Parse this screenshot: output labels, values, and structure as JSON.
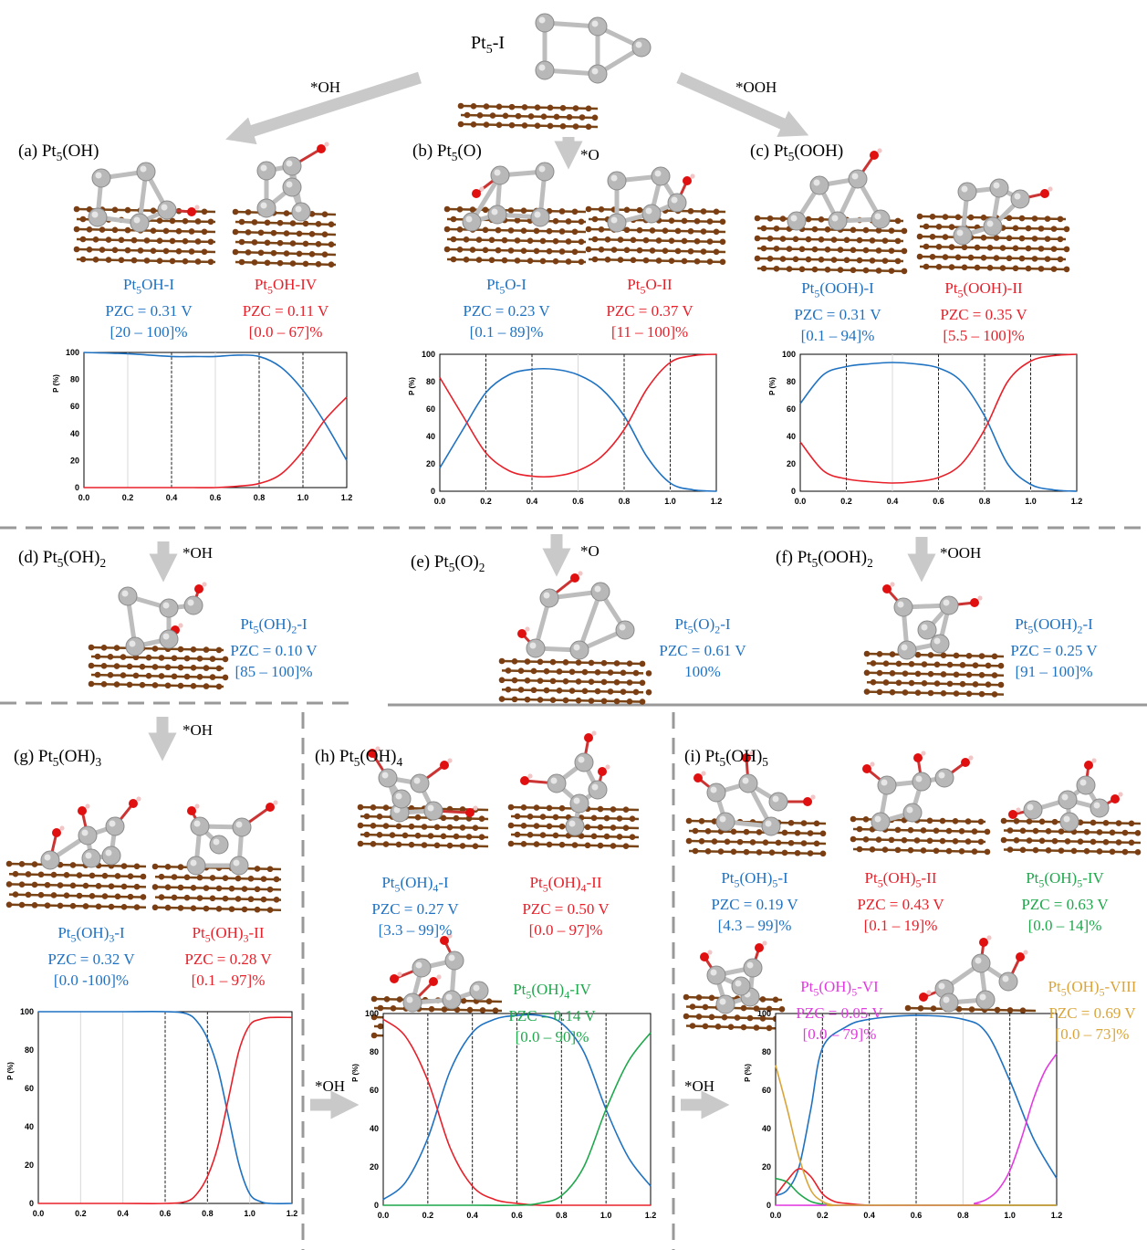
{
  "top": {
    "label": "Pt5-I",
    "arrow_left": "*OH",
    "arrow_right": "*OOH"
  },
  "panels": {
    "a": {
      "title": "(a) Pt5(OH)",
      "structures": [
        {
          "name": "Pt5OH-I",
          "pzc": "PZC = 0.31 V",
          "range": "[20 – 100]%",
          "color": "#1f72c2"
        },
        {
          "name": "Pt5OH-IV",
          "pzc": "PZC = 0.11 V",
          "range": "[0.0 – 67]%",
          "color": "#e8202a"
        }
      ]
    },
    "b": {
      "title": "(b) Pt5(O)",
      "arrow": "*O",
      "structures": [
        {
          "name": "Pt5O-I",
          "pzc": "PZC = 0.23 V",
          "range": "[0.1 – 89]%",
          "color": "#1f72c2"
        },
        {
          "name": "Pt5O-II",
          "pzc": "PZC = 0.37 V",
          "range": "[11 – 100]%",
          "color": "#e8202a"
        }
      ]
    },
    "c": {
      "title": "(c) Pt5(OOH)",
      "structures": [
        {
          "name": "Pt5(OOH)-I",
          "pzc": "PZC = 0.31 V",
          "range": "[0.1 – 94]%",
          "color": "#1f72c2"
        },
        {
          "name": "Pt5(OOH)-II",
          "pzc": "PZC = 0.35 V",
          "range": "[5.5 – 100]%",
          "color": "#e8202a"
        }
      ]
    },
    "d": {
      "title": "(d) Pt5(OH)2",
      "arrow": "*OH",
      "structures": [
        {
          "name": "Pt5(OH)2-I",
          "pzc": "PZC = 0.10 V",
          "range": "[85 – 100]%",
          "color": "#1f72c2"
        }
      ]
    },
    "e": {
      "title": "(e) Pt5(O)2",
      "arrow": "*O",
      "structures": [
        {
          "name": "Pt5(O)2-I",
          "pzc": "PZC = 0.61 V",
          "range": "100%",
          "color": "#1f72c2"
        }
      ]
    },
    "f": {
      "title": "(f) Pt5(OOH)2",
      "arrow": "*OOH",
      "structures": [
        {
          "name": "Pt5(OOH)2-I",
          "pzc": "PZC = 0.25 V",
          "range": "[91 – 100]%",
          "color": "#1f72c2"
        }
      ]
    },
    "g": {
      "title": "(g) Pt5(OH)3",
      "arrow": "*OH",
      "structures": [
        {
          "name": "Pt5(OH)3-I",
          "pzc": "PZC = 0.32 V",
          "range": "[0.0 -100]%",
          "color": "#1f72c2"
        },
        {
          "name": "Pt5(OH)3-II",
          "pzc": "PZC = 0.28 V",
          "range": "[0.1 – 97]%",
          "color": "#e8202a"
        }
      ]
    },
    "h": {
      "title": "(h) Pt5(OH)4",
      "arrow": "*OH",
      "structures": [
        {
          "name": "Pt5(OH)4-I",
          "pzc": "PZC = 0.27 V",
          "range": "[3.3 – 99]%",
          "color": "#1f72c2"
        },
        {
          "name": "Pt5(OH)4-II",
          "pzc": "PZC = 0.50 V",
          "range": "[0.0 – 97]%",
          "color": "#e8202a"
        },
        {
          "name": "Pt5(OH)4-IV",
          "pzc": "PZC = 0.14 V",
          "range": "[0.0 – 90]%",
          "color": "#1fa74c"
        }
      ]
    },
    "i": {
      "title": "(i) Pt5(OH)5",
      "arrow": "*OH",
      "structures": [
        {
          "name": "Pt5(OH)5-I",
          "pzc": "PZC = 0.19 V",
          "range": "[4.3 – 99]%",
          "color": "#1f72c2"
        },
        {
          "name": "Pt5(OH)5-II",
          "pzc": "PZC = 0.43 V",
          "range": "[0.1 – 19]%",
          "color": "#e8202a"
        },
        {
          "name": "Pt5(OH)5-IV",
          "pzc": "PZC = 0.63 V",
          "range": "[0.0 – 14]%",
          "color": "#1fa74c"
        },
        {
          "name": "Pt5(OH)5-VI",
          "pzc": "PZC = 0.05 V",
          "range": "[0.0 – 79]%",
          "color": "#e23be0"
        },
        {
          "name": "Pt5(OH)5-VIII",
          "pzc": "PZC = 0.69 V",
          "range": "[0.0 – 73]%",
          "color": "#d9a53b"
        }
      ]
    }
  },
  "chart_data": [
    {
      "id": "a",
      "type": "line",
      "ylabel": "P (%)",
      "xlim": [
        0,
        1.2
      ],
      "ylim": [
        0,
        100
      ],
      "xticks": [
        "0.0",
        "0.2",
        "0.4",
        "0.6",
        "0.8",
        "1.0",
        "1.2"
      ],
      "yticks": [
        "0",
        "20",
        "40",
        "60",
        "80",
        "100"
      ],
      "vlines_dashed": [
        0.4,
        0.8,
        1.0
      ],
      "series": [
        {
          "color": "#1f72c2",
          "x": [
            0,
            0.2,
            0.4,
            0.5,
            0.6,
            0.7,
            0.8,
            0.9,
            1.0,
            1.1,
            1.2
          ],
          "y": [
            100,
            99,
            97,
            97,
            97,
            98,
            97,
            89,
            72,
            48,
            20
          ]
        },
        {
          "color": "#e8202a",
          "x": [
            0,
            0.2,
            0.4,
            0.5,
            0.6,
            0.7,
            0.8,
            0.9,
            1.0,
            1.1,
            1.2
          ],
          "y": [
            0,
            0,
            0,
            0,
            0,
            1,
            3,
            10,
            27,
            50,
            67
          ]
        }
      ]
    },
    {
      "id": "b",
      "type": "line",
      "ylabel": "P (%)",
      "xlim": [
        0,
        1.2
      ],
      "ylim": [
        0,
        100
      ],
      "xticks": [
        "0.0",
        "0.2",
        "0.4",
        "0.6",
        "0.8",
        "1.0",
        "1.2"
      ],
      "yticks": [
        "0",
        "20",
        "40",
        "60",
        "80",
        "100"
      ],
      "vlines_dashed": [
        0.2,
        0.4,
        0.8,
        1.0
      ],
      "series": [
        {
          "color": "#1f72c2",
          "x": [
            0,
            0.1,
            0.2,
            0.3,
            0.4,
            0.5,
            0.6,
            0.7,
            0.8,
            0.9,
            1.0,
            1.1,
            1.2
          ],
          "y": [
            17,
            45,
            72,
            85,
            89,
            89,
            85,
            75,
            55,
            25,
            6,
            1,
            0
          ]
        },
        {
          "color": "#e8202a",
          "x": [
            0,
            0.1,
            0.2,
            0.3,
            0.4,
            0.5,
            0.6,
            0.7,
            0.8,
            0.9,
            1.0,
            1.1,
            1.2
          ],
          "y": [
            83,
            55,
            28,
            15,
            11,
            11,
            15,
            25,
            45,
            75,
            94,
            99,
            100
          ]
        }
      ]
    },
    {
      "id": "c",
      "type": "line",
      "ylabel": "P (%)",
      "xlim": [
        0,
        1.2
      ],
      "ylim": [
        0,
        100
      ],
      "xticks": [
        "0.0",
        "0.2",
        "0.4",
        "0.6",
        "0.8",
        "1.0",
        "1.2"
      ],
      "yticks": [
        "0",
        "20",
        "40",
        "60",
        "80",
        "100"
      ],
      "vlines_dashed": [
        0.2,
        0.6,
        0.8,
        1.0
      ],
      "series": [
        {
          "color": "#1f72c2",
          "x": [
            0,
            0.1,
            0.2,
            0.3,
            0.4,
            0.5,
            0.6,
            0.7,
            0.8,
            0.9,
            1.0,
            1.1,
            1.2
          ],
          "y": [
            64,
            85,
            91,
            93,
            94,
            93,
            90,
            80,
            55,
            20,
            5,
            1,
            0
          ]
        },
        {
          "color": "#e8202a",
          "x": [
            0,
            0.1,
            0.2,
            0.3,
            0.4,
            0.5,
            0.6,
            0.7,
            0.8,
            0.9,
            1.0,
            1.1,
            1.2
          ],
          "y": [
            36,
            15,
            9,
            7,
            6,
            7,
            10,
            20,
            45,
            80,
            95,
            99,
            100
          ]
        }
      ]
    },
    {
      "id": "g",
      "type": "line",
      "ylabel": "P (%)",
      "xlim": [
        0,
        1.2
      ],
      "ylim": [
        0,
        100
      ],
      "xticks": [
        "0.0",
        "0.2",
        "0.4",
        "0.6",
        "0.8",
        "1.0",
        "1.2"
      ],
      "yticks": [
        "0",
        "20",
        "40",
        "60",
        "80",
        "100"
      ],
      "vlines_dashed": [
        0.6,
        0.8
      ],
      "series": [
        {
          "color": "#1f72c2",
          "x": [
            0,
            0.2,
            0.4,
            0.6,
            0.7,
            0.75,
            0.8,
            0.85,
            0.9,
            0.95,
            1.0,
            1.05,
            1.1,
            1.2
          ],
          "y": [
            100,
            100,
            100,
            100,
            99,
            95,
            86,
            70,
            45,
            20,
            5,
            1,
            0,
            0
          ]
        },
        {
          "color": "#e8202a",
          "x": [
            0,
            0.2,
            0.4,
            0.6,
            0.7,
            0.75,
            0.8,
            0.85,
            0.9,
            0.95,
            1.0,
            1.05,
            1.1,
            1.2
          ],
          "y": [
            0,
            0,
            0,
            0,
            1,
            5,
            14,
            30,
            55,
            80,
            93,
            96,
            97,
            97
          ]
        }
      ]
    },
    {
      "id": "h",
      "type": "line",
      "ylabel": "P (%)",
      "xlim": [
        0,
        1.2
      ],
      "ylim": [
        0,
        100
      ],
      "xticks": [
        "0.0",
        "0.2",
        "0.4",
        "0.6",
        "0.8",
        "1.0",
        "1.2"
      ],
      "yticks": [
        "0",
        "20",
        "40",
        "60",
        "80",
        "100"
      ],
      "vlines_dashed": [
        0.2,
        0.4,
        0.6,
        0.8,
        1.0
      ],
      "series": [
        {
          "color": "#1f72c2",
          "x": [
            0,
            0.1,
            0.2,
            0.3,
            0.4,
            0.5,
            0.6,
            0.7,
            0.8,
            0.9,
            1.0,
            1.1,
            1.2
          ],
          "y": [
            3,
            12,
            35,
            70,
            90,
            97,
            99,
            99,
            95,
            80,
            50,
            25,
            10
          ]
        },
        {
          "color": "#e8202a",
          "x": [
            0,
            0.1,
            0.2,
            0.3,
            0.4,
            0.5,
            0.6,
            0.7,
            0.8,
            0.9,
            1.0,
            1.1,
            1.2
          ],
          "y": [
            97,
            88,
            65,
            30,
            10,
            3,
            1,
            0,
            0,
            0,
            0,
            0,
            0
          ]
        },
        {
          "color": "#1fa74c",
          "x": [
            0,
            0.2,
            0.4,
            0.6,
            0.7,
            0.8,
            0.9,
            1.0,
            1.1,
            1.2
          ],
          "y": [
            0,
            0,
            0,
            0,
            1,
            5,
            20,
            50,
            75,
            90
          ]
        }
      ]
    },
    {
      "id": "i",
      "type": "line",
      "ylabel": "P (%)",
      "xlim": [
        0,
        1.2
      ],
      "ylim": [
        0,
        100
      ],
      "xticks": [
        "0.0",
        "0.2",
        "0.4",
        "0.6",
        "0.8",
        "1.0",
        "1.2"
      ],
      "yticks": [
        "0",
        "20",
        "40",
        "60",
        "80",
        "100"
      ],
      "vlines_dashed": [
        0.2,
        0.4,
        0.6,
        1.0
      ],
      "series": [
        {
          "color": "#1f72c2",
          "x": [
            0,
            0.05,
            0.1,
            0.15,
            0.2,
            0.3,
            0.4,
            0.6,
            0.8,
            0.9,
            1.0,
            1.1,
            1.2
          ],
          "y": [
            5,
            8,
            20,
            50,
            82,
            93,
            97,
            99,
            97,
            90,
            65,
            35,
            14
          ]
        },
        {
          "color": "#e8202a",
          "x": [
            0,
            0.05,
            0.1,
            0.15,
            0.2,
            0.25,
            0.3,
            0.4,
            0.6,
            1.2
          ],
          "y": [
            5,
            13,
            19,
            15,
            6,
            2,
            1,
            0,
            0,
            0
          ]
        },
        {
          "color": "#1fa74c",
          "x": [
            0,
            0.05,
            0.1,
            0.15,
            0.2,
            0.25,
            0.3,
            0.6,
            1.2
          ],
          "y": [
            14,
            12,
            6,
            2,
            0.5,
            0,
            0,
            0,
            0
          ]
        },
        {
          "color": "#e23be0",
          "x": [
            0,
            0.8,
            0.85,
            0.9,
            0.95,
            1.0,
            1.05,
            1.1,
            1.15,
            1.2
          ],
          "y": [
            0,
            0,
            1,
            3,
            8,
            18,
            35,
            55,
            70,
            79
          ]
        },
        {
          "color": "#d9a53b",
          "x": [
            0,
            0.05,
            0.1,
            0.15,
            0.2,
            0.25,
            0.3,
            1.2
          ],
          "y": [
            73,
            50,
            25,
            8,
            2,
            0,
            0,
            0
          ]
        }
      ]
    }
  ]
}
